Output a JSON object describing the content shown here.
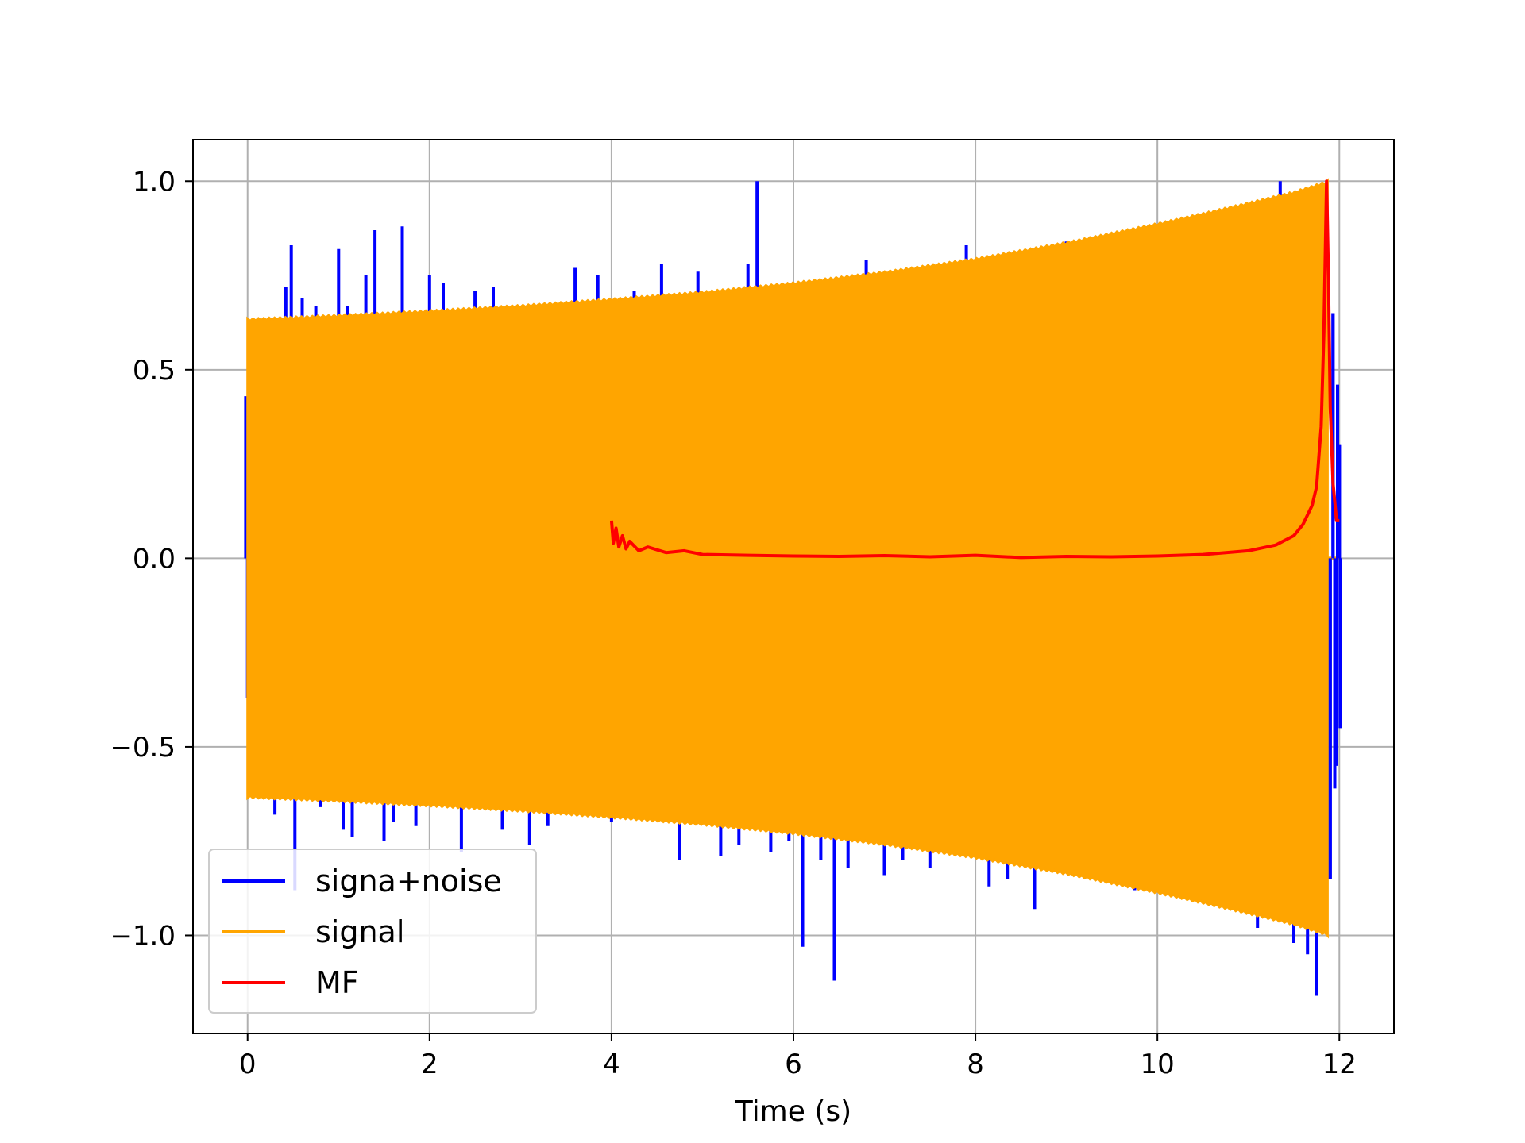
{
  "chart_data": {
    "type": "line",
    "title": "",
    "xlabel": "Time (s)",
    "ylabel": "",
    "xlim": [
      -0.6,
      12.6
    ],
    "ylim": [
      -1.26,
      1.11
    ],
    "xticks": [
      0,
      2,
      4,
      6,
      8,
      10,
      12
    ],
    "xtick_labels": [
      "0",
      "2",
      "4",
      "6",
      "8",
      "10",
      "12"
    ],
    "yticks": [
      -1.0,
      -0.5,
      0.0,
      0.5,
      1.0
    ],
    "ytick_labels": [
      "−1.0",
      "−0.5",
      "0.0",
      "0.5",
      "1.0"
    ],
    "grid": true,
    "legend_position": "lower-left",
    "series": [
      {
        "name": "signa+noise",
        "color": "#0000ff",
        "description": "noisy chirp, spikes",
        "spikes": [
          [
            -0.02,
            0.43
          ],
          [
            0.0,
            -0.37
          ],
          [
            0.02,
            -0.21
          ],
          [
            0.3,
            -0.68
          ],
          [
            0.42,
            0.72
          ],
          [
            0.48,
            0.83
          ],
          [
            0.52,
            -0.88
          ],
          [
            0.6,
            0.69
          ],
          [
            0.75,
            0.67
          ],
          [
            0.8,
            -0.66
          ],
          [
            1.0,
            0.82
          ],
          [
            1.05,
            -0.72
          ],
          [
            1.1,
            0.67
          ],
          [
            1.15,
            -0.74
          ],
          [
            1.3,
            0.75
          ],
          [
            1.4,
            0.87
          ],
          [
            1.5,
            -0.75
          ],
          [
            1.6,
            -0.7
          ],
          [
            1.7,
            0.88
          ],
          [
            1.85,
            -0.71
          ],
          [
            2.0,
            0.75
          ],
          [
            2.15,
            0.73
          ],
          [
            2.35,
            -0.78
          ],
          [
            2.5,
            0.71
          ],
          [
            2.7,
            0.72
          ],
          [
            2.8,
            -0.72
          ],
          [
            2.95,
            0.67
          ],
          [
            3.1,
            -0.76
          ],
          [
            3.3,
            -0.71
          ],
          [
            3.6,
            0.77
          ],
          [
            3.85,
            0.75
          ],
          [
            4.0,
            -0.7
          ],
          [
            4.25,
            0.71
          ],
          [
            4.55,
            0.78
          ],
          [
            4.75,
            -0.8
          ],
          [
            4.95,
            0.76
          ],
          [
            5.2,
            -0.79
          ],
          [
            5.4,
            -0.76
          ],
          [
            5.5,
            0.78
          ],
          [
            5.6,
            1.0
          ],
          [
            5.75,
            -0.78
          ],
          [
            5.95,
            -0.75
          ],
          [
            6.1,
            -1.03
          ],
          [
            6.3,
            -0.8
          ],
          [
            6.45,
            -1.12
          ],
          [
            6.6,
            -0.82
          ],
          [
            6.8,
            0.79
          ],
          [
            7.0,
            -0.84
          ],
          [
            7.2,
            -0.8
          ],
          [
            7.5,
            -0.82
          ],
          [
            7.9,
            0.83
          ],
          [
            8.15,
            -0.87
          ],
          [
            8.35,
            -0.85
          ],
          [
            8.55,
            0.8
          ],
          [
            8.65,
            -0.93
          ],
          [
            8.8,
            0.82
          ],
          [
            9.0,
            0.84
          ],
          [
            9.2,
            -0.85
          ],
          [
            9.5,
            0.85
          ],
          [
            9.75,
            -0.88
          ],
          [
            10.0,
            0.86
          ],
          [
            10.2,
            0.88
          ],
          [
            10.5,
            -0.91
          ],
          [
            10.8,
            0.9
          ],
          [
            11.1,
            -0.98
          ],
          [
            11.35,
            1.0
          ],
          [
            11.5,
            -1.02
          ],
          [
            11.6,
            0.97
          ],
          [
            11.65,
            -1.05
          ],
          [
            11.7,
            -0.95
          ],
          [
            11.75,
            -1.16
          ],
          [
            11.85,
            0.75
          ],
          [
            11.9,
            -0.85
          ],
          [
            11.93,
            0.65
          ],
          [
            11.95,
            -0.61
          ],
          [
            11.97,
            -0.55
          ],
          [
            11.98,
            0.46
          ],
          [
            12.0,
            0.3
          ],
          [
            12.01,
            -0.45
          ]
        ]
      },
      {
        "name": "signal",
        "color": "#ffa500",
        "envelope": [
          [
            0.0,
            0.635
          ],
          [
            1.0,
            0.645
          ],
          [
            2.0,
            0.657
          ],
          [
            3.0,
            0.671
          ],
          [
            4.0,
            0.688
          ],
          [
            5.0,
            0.707
          ],
          [
            6.0,
            0.731
          ],
          [
            7.0,
            0.76
          ],
          [
            8.0,
            0.795
          ],
          [
            9.0,
            0.838
          ],
          [
            10.0,
            0.888
          ],
          [
            10.5,
            0.915
          ],
          [
            11.0,
            0.943
          ],
          [
            11.5,
            0.972
          ],
          [
            11.87,
            1.0
          ]
        ],
        "end_time": 11.87,
        "zero_tail_end": 12.0
      },
      {
        "name": "MF",
        "color": "#ff0000",
        "points": [
          [
            4.0,
            0.1
          ],
          [
            4.02,
            0.04
          ],
          [
            4.05,
            0.08
          ],
          [
            4.08,
            0.03
          ],
          [
            4.12,
            0.06
          ],
          [
            4.16,
            0.025
          ],
          [
            4.2,
            0.045
          ],
          [
            4.3,
            0.02
          ],
          [
            4.4,
            0.03
          ],
          [
            4.6,
            0.015
          ],
          [
            4.8,
            0.02
          ],
          [
            5.0,
            0.01
          ],
          [
            5.5,
            0.008
          ],
          [
            6.0,
            0.006
          ],
          [
            6.5,
            0.005
          ],
          [
            7.0,
            0.007
          ],
          [
            7.5,
            0.004
          ],
          [
            8.0,
            0.008
          ],
          [
            8.5,
            0.002
          ],
          [
            9.0,
            0.005
          ],
          [
            9.5,
            0.004
          ],
          [
            10.0,
            0.006
          ],
          [
            10.5,
            0.01
          ],
          [
            11.0,
            0.02
          ],
          [
            11.3,
            0.035
          ],
          [
            11.5,
            0.06
          ],
          [
            11.6,
            0.09
          ],
          [
            11.7,
            0.14
          ],
          [
            11.75,
            0.19
          ],
          [
            11.8,
            0.35
          ],
          [
            11.83,
            0.6
          ],
          [
            11.86,
            1.0
          ],
          [
            11.88,
            0.75
          ],
          [
            11.9,
            0.4
          ],
          [
            11.93,
            0.2
          ],
          [
            11.95,
            0.15
          ],
          [
            11.97,
            0.1
          ],
          [
            12.0,
            0.1
          ]
        ]
      }
    ]
  }
}
